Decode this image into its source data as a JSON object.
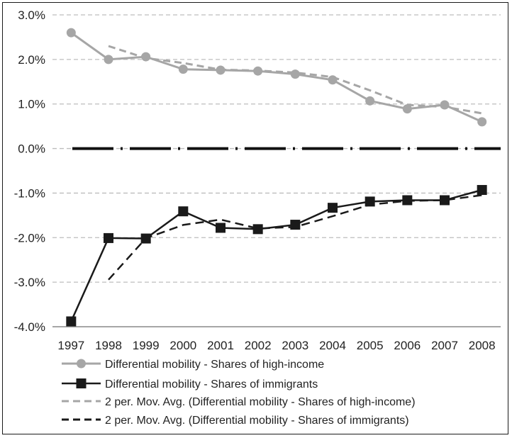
{
  "chart_data": {
    "type": "line",
    "title": "",
    "xlabel": "",
    "ylabel": "",
    "categories": [
      "1997",
      "1998",
      "1999",
      "2000",
      "2001",
      "2002",
      "2003",
      "2004",
      "2005",
      "2006",
      "2007",
      "2008"
    ],
    "ylim": [
      -0.04,
      0.03
    ],
    "yticks": [
      0.03,
      0.02,
      0.01,
      0.0,
      -0.01,
      -0.02,
      -0.03,
      -0.04
    ],
    "ytick_labels": [
      "3.0%",
      "2.0%",
      "1.0%",
      "0.0%",
      "-1.0%",
      "-2.0%",
      "-3.0%",
      "-4.0%"
    ],
    "grid": "horizontal dashed",
    "zero_line": "black dash-dot",
    "legend_position": "bottom",
    "series": [
      {
        "name": "Differential mobility - Shares of high-income",
        "style": "solid-circle",
        "color": "#a6a6a6",
        "values": [
          0.026,
          0.02,
          0.0206,
          0.0178,
          0.0176,
          0.0174,
          0.0167,
          0.0154,
          0.0107,
          0.0089,
          0.0098,
          0.006
        ]
      },
      {
        "name": "Differential mobility - Shares of immigrants",
        "style": "solid-square",
        "color": "#1a1a1a",
        "values": [
          -0.0388,
          -0.0201,
          -0.0202,
          -0.0141,
          -0.0178,
          -0.0181,
          -0.0171,
          -0.0133,
          -0.0119,
          -0.0116,
          -0.0116,
          -0.0093
        ]
      },
      {
        "name": "2 per. Mov. Avg. (Differential mobility - Shares of high-income)",
        "style": "dashed",
        "color": "#a6a6a6",
        "values": [
          null,
          0.023,
          0.0203,
          0.0192,
          0.0177,
          0.0175,
          0.01705,
          0.01605,
          0.01305,
          0.0098,
          0.00935,
          0.0079
        ]
      },
      {
        "name": "2 per. Mov. Avg. (Differential mobility - Shares of immigrants)",
        "style": "dashed",
        "color": "#1a1a1a",
        "values": [
          null,
          -0.02945,
          -0.02015,
          -0.01715,
          -0.01595,
          -0.01795,
          -0.0176,
          -0.0152,
          -0.0126,
          -0.01175,
          -0.0116,
          -0.01045
        ]
      }
    ]
  }
}
